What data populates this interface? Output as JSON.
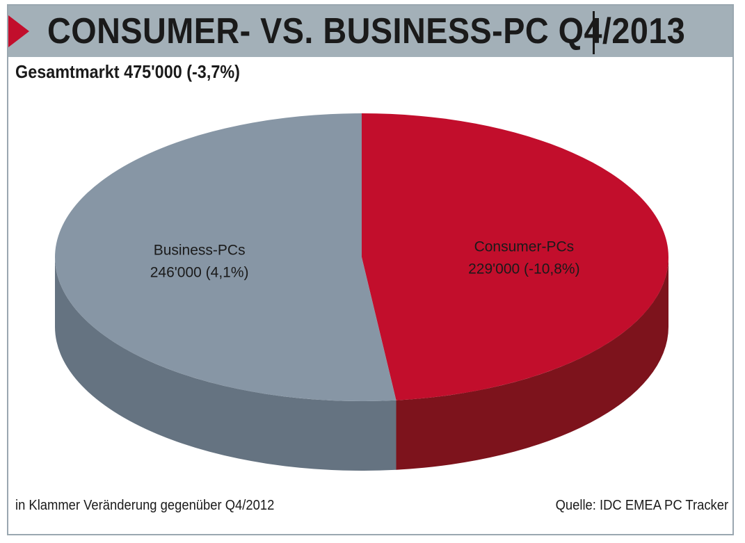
{
  "header": {
    "title": "CONSUMER- VS. BUSINESS-PC Q4/2013"
  },
  "subtitle": "Gesamtmarkt 475'000 (-3,7%)",
  "chart_data": {
    "type": "pie",
    "title": "CONSUMER- VS. BUSINESS-PC Q4/2013",
    "subtitle": "Gesamtmarkt 475'000 (-3,7%)",
    "slices": [
      {
        "name": "Consumer-PCs",
        "value": 229000,
        "change": "-10,8%",
        "label": "229'000 (-10,8%)",
        "color": "#c20e2c",
        "side_color": "#7d131c"
      },
      {
        "name": "Business-PCs",
        "value": 246000,
        "change": "4,1%",
        "label": "246'000 (4,1%)",
        "color": "#8796a5",
        "side_color": "#657381"
      }
    ]
  },
  "footer": {
    "note": "in Klammer Veränderung gegenüber Q4/2012",
    "source": "Quelle: IDC EMEA PC Tracker"
  }
}
